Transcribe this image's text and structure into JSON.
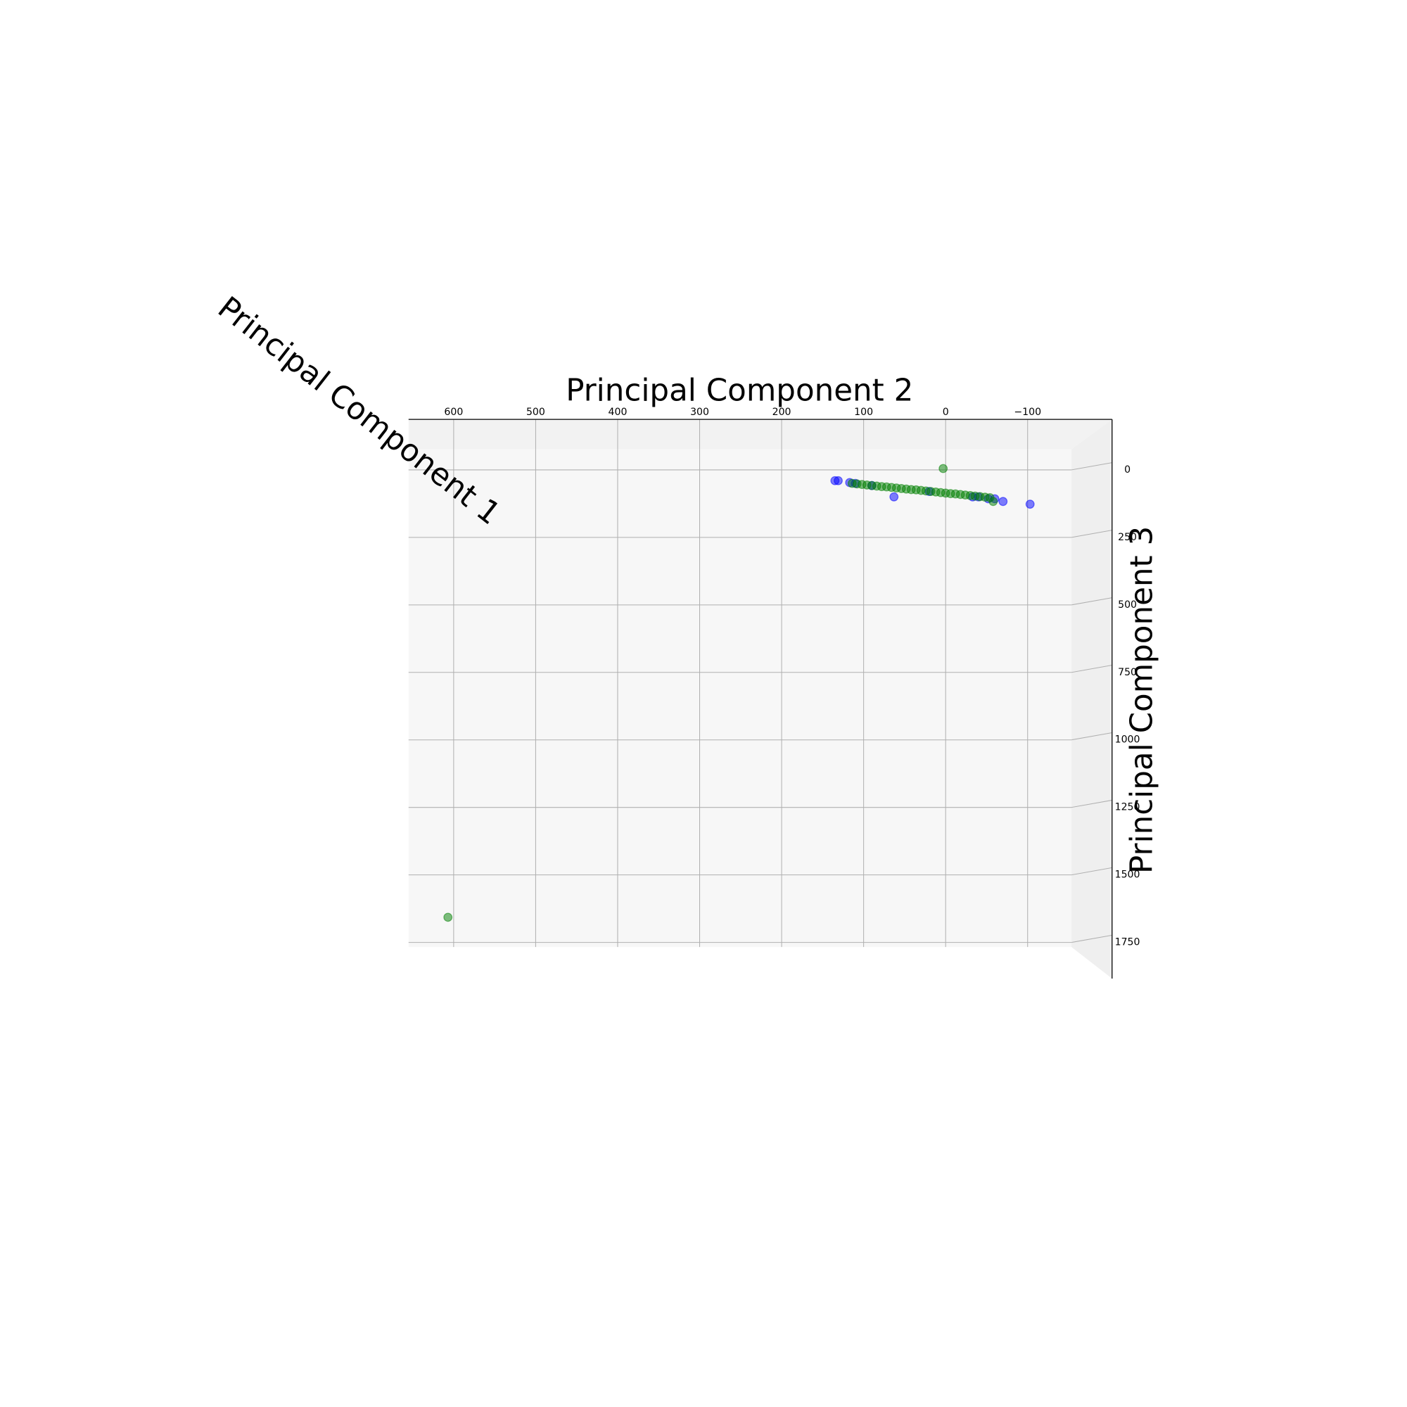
{
  "chart_data": {
    "type": "scatter",
    "xlabel": "Principal Component 2",
    "ylabel": "Principal Component 3",
    "zlabel": "Principal Component 1",
    "xlim": [
      655,
      -203
    ],
    "ylim": [
      -187,
      1884
    ],
    "xticks": [
      600,
      500,
      400,
      300,
      200,
      100,
      0,
      {
        "value": -100,
        "label": "−100"
      }
    ],
    "yticks": [
      0,
      250,
      500,
      750,
      1000,
      1250,
      1500,
      1750
    ],
    "grid": true,
    "alpha": 0.5,
    "series": [
      {
        "color": "#0000ff",
        "x": [
          135,
          131,
          117,
          63,
          -33,
          -52,
          -60,
          -70,
          -103,
          110,
          90,
          20,
          -40
        ],
        "values": [
          40,
          40,
          47,
          100,
          100,
          107,
          107,
          117,
          127,
          50,
          58,
          80,
          100
        ]
      },
      {
        "color": "#008000",
        "x": [
          3,
          607,
          -58,
          114,
          108,
          102,
          96,
          90,
          84,
          78,
          72,
          66,
          60,
          54,
          48,
          42,
          36,
          30,
          24,
          18,
          12,
          6,
          0,
          -6,
          -12,
          -18,
          -24,
          -30,
          -36,
          -42,
          -48,
          -54
        ],
        "values": [
          -5,
          1657,
          117,
          50,
          52,
          54,
          56,
          58,
          60,
          62,
          63,
          65,
          67,
          69,
          71,
          73,
          74,
          76,
          78,
          80,
          82,
          84,
          86,
          88,
          89,
          91,
          93,
          95,
          97,
          99,
          101,
          103
        ]
      }
    ]
  }
}
